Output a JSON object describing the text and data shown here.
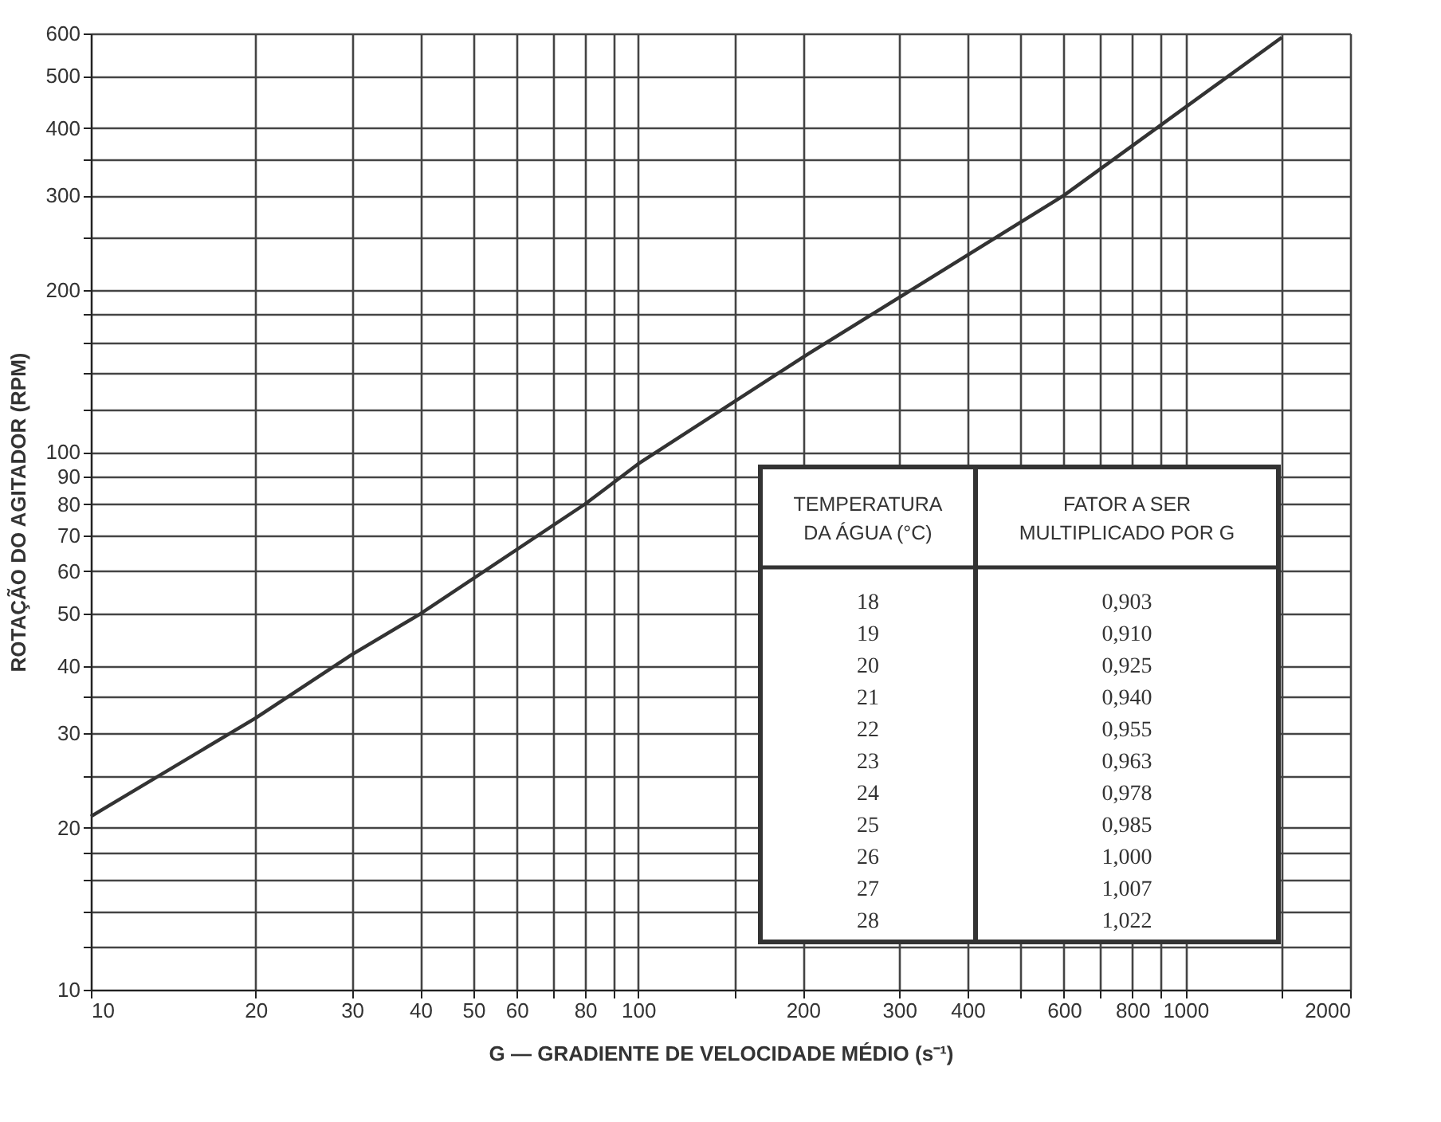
{
  "chart_data": {
    "type": "line",
    "xlabel": "G — GRADIENTE DE VELOCIDADE MÉDIO (s⁻¹)",
    "ylabel": "ROTAÇÃO DO AGITADOR (RPM)",
    "x": [
      10,
      20,
      30,
      40,
      80,
      100,
      200,
      600,
      1500
    ],
    "series": [
      {
        "color": "#333333",
        "values": [
          21,
          32,
          42,
          50,
          80,
          95,
          150,
          300,
          590
        ]
      }
    ],
    "log": "xy",
    "grid": true,
    "marker": "none",
    "line_style": "solid",
    "xlim": [
      10,
      2000
    ],
    "ylim": [
      10,
      600
    ],
    "xticks": [
      10,
      20,
      30,
      40,
      50,
      60,
      {
        "value": 70,
        "label": null
      },
      80,
      {
        "value": 90,
        "label": null
      },
      100,
      {
        "value": 150,
        "label": null
      },
      200,
      300,
      400,
      {
        "value": 500,
        "label": null
      },
      600,
      {
        "value": 700,
        "label": null
      },
      800,
      {
        "value": 900,
        "label": null
      },
      1000,
      {
        "value": 1500,
        "label": null
      },
      2000
    ],
    "yticks": [
      10,
      {
        "value": 12,
        "label": null
      },
      {
        "value": 14,
        "label": null
      },
      {
        "value": 16,
        "label": null
      },
      {
        "value": 18,
        "label": null
      },
      20,
      {
        "value": 25,
        "label": null
      },
      30,
      {
        "value": 35,
        "label": null
      },
      40,
      50,
      60,
      70,
      80,
      90,
      100,
      {
        "value": 120,
        "label": null
      },
      {
        "value": 140,
        "label": null
      },
      {
        "value": 160,
        "label": null
      },
      {
        "value": 180,
        "label": null
      },
      200,
      {
        "value": 250,
        "label": null
      },
      300,
      {
        "value": 350,
        "label": null
      },
      400,
      500,
      600
    ],
    "annotations": [
      "TEMPERATURA DA ÁGUA (°C)",
      "FATOR A SER MULTIPLICADO POR G",
      "18",
      "0,903",
      "19",
      "0,910",
      "20",
      "0,925",
      "21",
      "0,940",
      "22",
      "0,955",
      "23",
      "0,963",
      "24",
      "0,978",
      "25",
      "0,985",
      "26",
      "1,000",
      "27",
      "1,007",
      "28",
      "1,022"
    ]
  }
}
